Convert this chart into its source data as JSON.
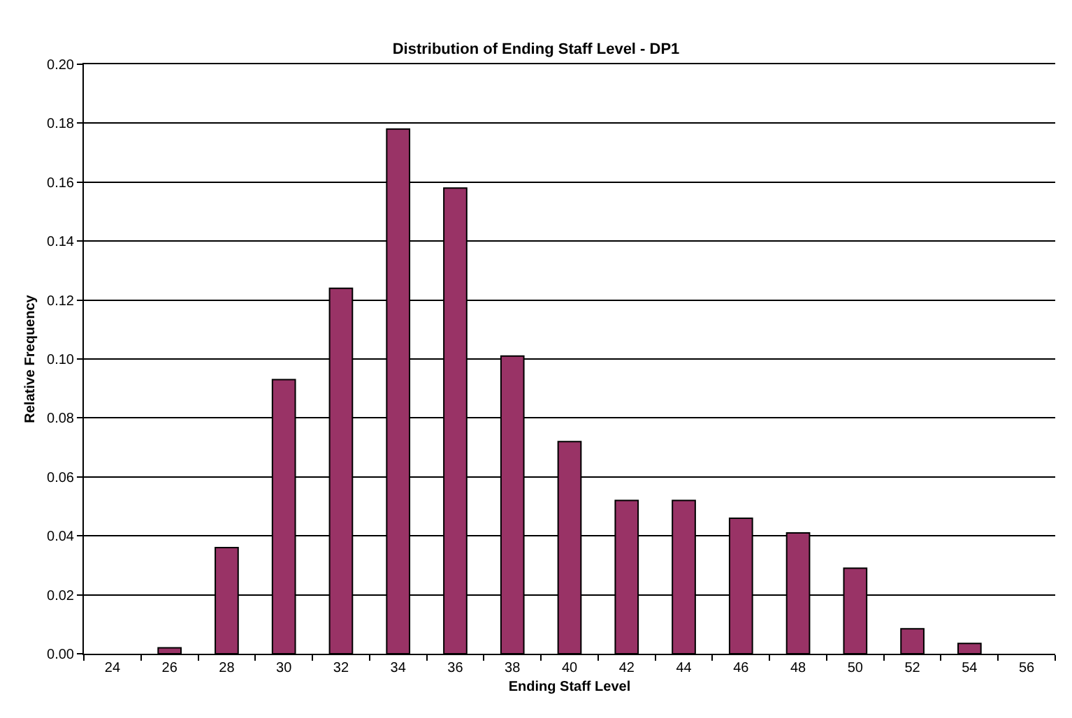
{
  "chart_data": {
    "type": "bar",
    "title": "Distribution of Ending Staff Level - DP1",
    "xlabel": "Ending Staff Level",
    "ylabel": "Relative Frequency",
    "categories": [
      "24",
      "26",
      "28",
      "30",
      "32",
      "34",
      "36",
      "38",
      "40",
      "42",
      "44",
      "46",
      "48",
      "50",
      "52",
      "54",
      "56"
    ],
    "values": [
      null,
      0.002,
      0.036,
      0.093,
      0.124,
      0.178,
      0.158,
      0.101,
      0.072,
      0.052,
      0.052,
      0.046,
      0.041,
      0.029,
      0.0085,
      0.0035,
      null
    ],
    "color": "#993366",
    "ylim": [
      0,
      0.2
    ],
    "yticks": [
      {
        "value": 0,
        "label": "0.00"
      },
      {
        "value": 0.02,
        "label": "0.02"
      },
      {
        "value": 0.04,
        "label": "0.04"
      },
      {
        "value": 0.06,
        "label": "0.06"
      },
      {
        "value": 0.08,
        "label": "0.08"
      },
      {
        "value": 0.1,
        "label": "0.10"
      },
      {
        "value": 0.12,
        "label": "0.12"
      },
      {
        "value": 0.14,
        "label": "0.14"
      },
      {
        "value": 0.16,
        "label": "0.16"
      },
      {
        "value": 0.18,
        "label": "0.18"
      },
      {
        "value": 0.2,
        "label": "0.20"
      }
    ],
    "grid": "y",
    "legend": false
  }
}
